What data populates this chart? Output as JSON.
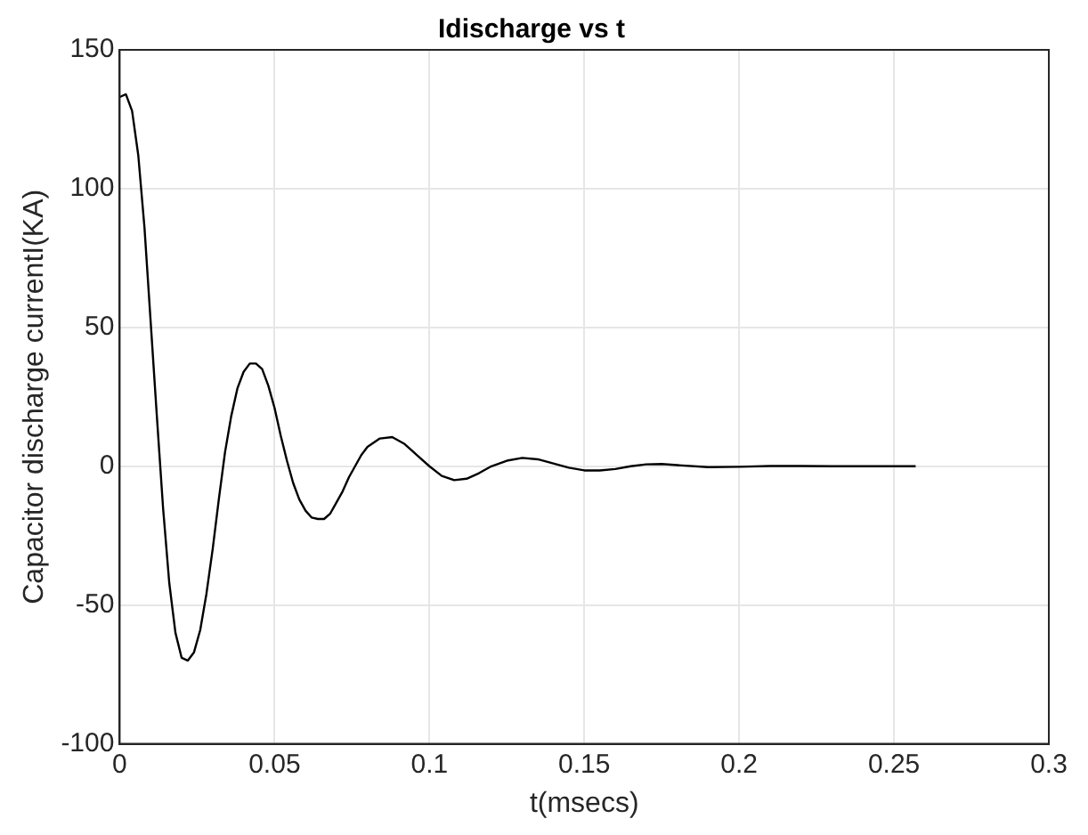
{
  "chart_data": {
    "type": "line",
    "title": "Idischarge vs t",
    "xlabel": "t(msecs)",
    "ylabel": "Capacitor discharge currentI(KA)",
    "x": [
      0,
      0.002,
      0.004,
      0.006,
      0.008,
      0.01,
      0.012,
      0.014,
      0.016,
      0.018,
      0.02,
      0.022,
      0.024,
      0.026,
      0.028,
      0.03,
      0.032,
      0.034,
      0.036,
      0.038,
      0.04,
      0.042,
      0.044,
      0.046,
      0.048,
      0.05,
      0.052,
      0.054,
      0.056,
      0.058,
      0.06,
      0.062,
      0.064,
      0.066,
      0.068,
      0.07,
      0.072,
      0.074,
      0.076,
      0.078,
      0.08,
      0.084,
      0.088,
      0.092,
      0.096,
      0.1,
      0.104,
      0.108,
      0.112,
      0.116,
      0.12,
      0.125,
      0.13,
      0.135,
      0.14,
      0.145,
      0.15,
      0.155,
      0.16,
      0.165,
      0.17,
      0.175,
      0.18,
      0.19,
      0.2,
      0.21,
      0.22,
      0.23,
      0.24,
      0.257
    ],
    "series": [
      {
        "color": "#000000",
        "values": [
          133,
          134,
          128,
          112,
          86,
          52,
          18,
          -15,
          -42,
          -60,
          -69,
          -70,
          -67,
          -59,
          -46,
          -30,
          -12,
          5,
          18,
          28,
          34,
          37,
          37,
          35,
          29,
          21,
          11,
          2,
          -6,
          -12,
          -16,
          -18.5,
          -19,
          -19,
          -17,
          -13,
          -9,
          -4,
          0,
          4,
          7,
          10,
          10.5,
          8,
          4,
          0,
          -3.5,
          -5,
          -4.5,
          -2.5,
          0,
          2,
          3,
          2.5,
          1,
          -0.5,
          -1.5,
          -1.5,
          -1,
          0,
          0.7,
          0.8,
          0.4,
          -0.3,
          -0.2,
          0.1,
          0.1,
          0,
          0,
          0
        ]
      }
    ],
    "xlim": [
      0,
      0.3
    ],
    "xticks": [
      0,
      0.05,
      0.1,
      0.15,
      0.2,
      0.25,
      0.3
    ],
    "ylim": [
      -100,
      150
    ],
    "yticks": [
      -100,
      -50,
      0,
      50,
      100,
      150
    ],
    "grid": true,
    "marker": "none",
    "line_style": "solid",
    "legend": false
  }
}
